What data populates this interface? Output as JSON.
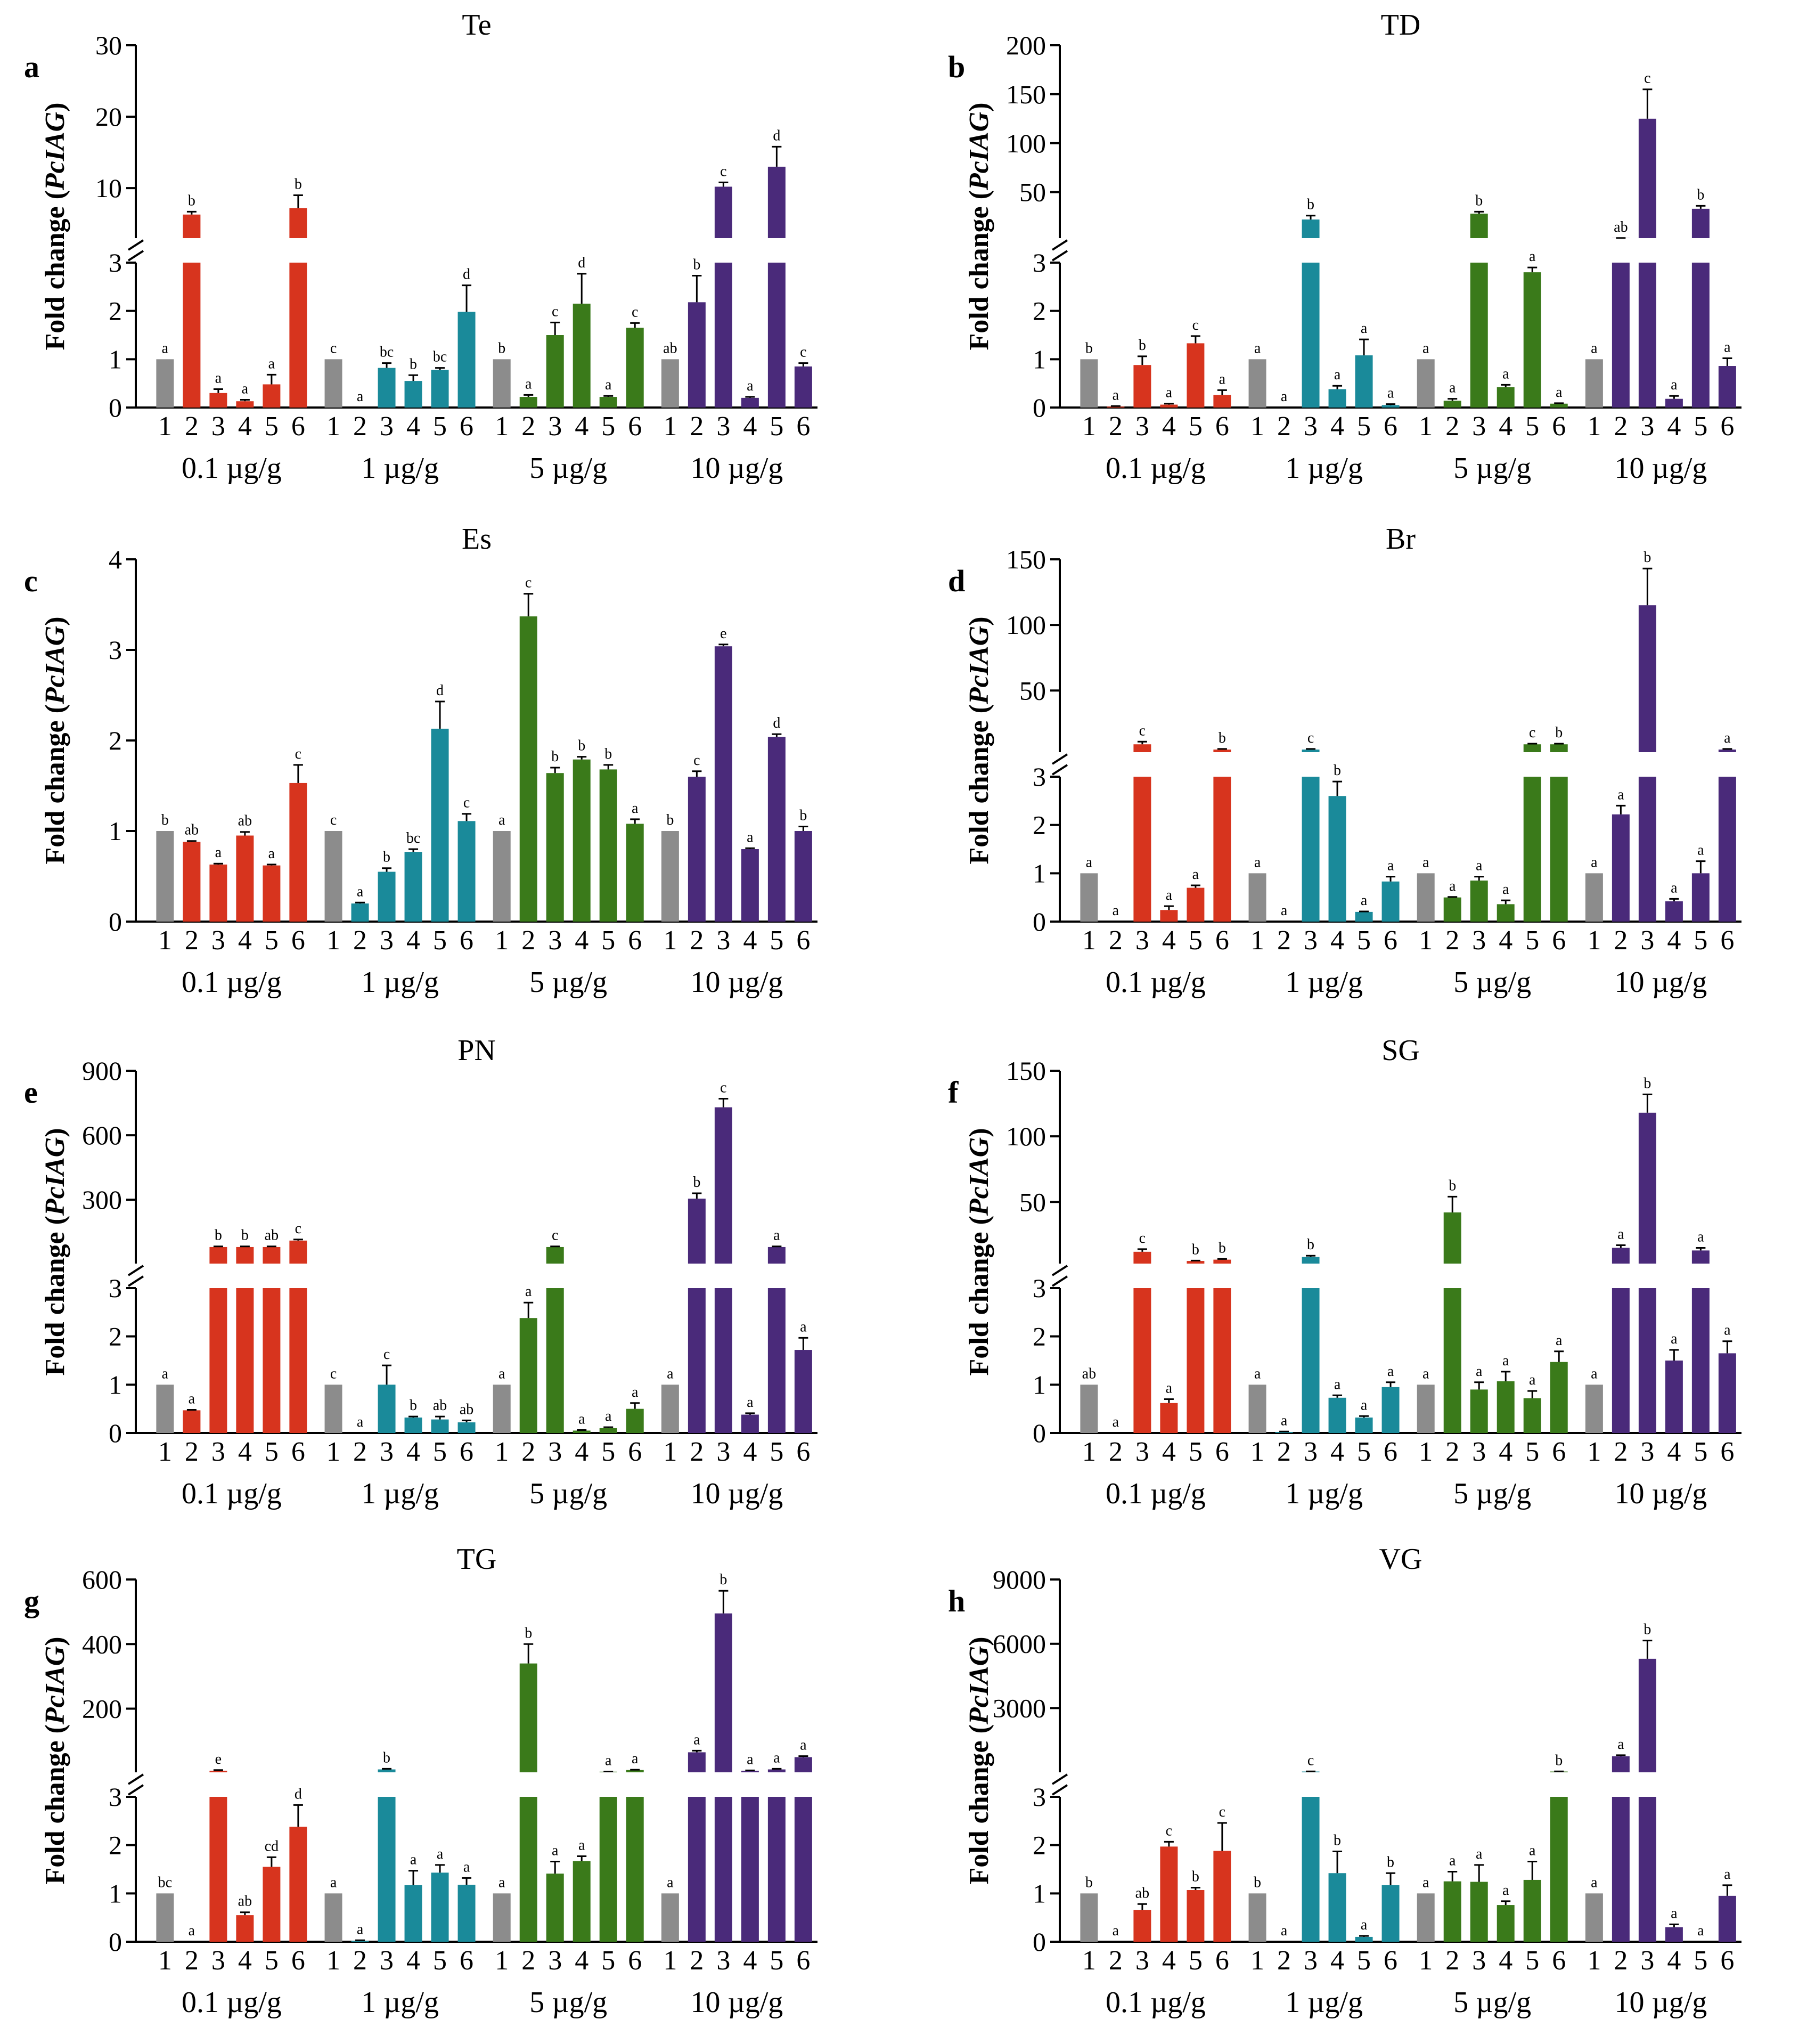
{
  "figure": {
    "y_label_prefix": "Fold change (",
    "y_label_gene": "PcIAG",
    "y_label_suffix": ")",
    "group_labels": [
      "0.1 µg/g",
      "1 µg/g",
      "5 µg/g",
      "10 µg/g"
    ],
    "bar_numbers": [
      "1",
      "2",
      "3",
      "4",
      "5",
      "6"
    ],
    "colors": {
      "control": "#8c8c8c",
      "group_0": "#d7341e",
      "group_1": "#1a8a9a",
      "group_2": "#3a7a1a",
      "group_3": "#4a2a7a"
    }
  },
  "chart_data": [
    {
      "type": "bar",
      "panel": "a",
      "title": "Te",
      "lower_ticks": [
        "0",
        "1",
        "2",
        "3"
      ],
      "upper_ticks": [
        "10",
        "20",
        "30"
      ],
      "lower_range": [
        0,
        3
      ],
      "upper_range": [
        3,
        30
      ],
      "groups": [
        {
          "values": [
            1.0,
            6.3,
            0.3,
            0.13,
            0.48,
            7.2
          ],
          "errors": [
            0,
            0.4,
            0.08,
            0.03,
            0.2,
            1.8
          ],
          "letters": [
            "a",
            "b",
            "a",
            "a",
            "a",
            "b"
          ]
        },
        {
          "values": [
            1.0,
            0.0,
            0.82,
            0.55,
            0.78,
            1.98
          ],
          "errors": [
            0,
            0,
            0.1,
            0.12,
            0.04,
            0.55
          ],
          "letters": [
            "c",
            "a",
            "bc",
            "b",
            "bc",
            "d"
          ]
        },
        {
          "values": [
            1.0,
            0.22,
            1.5,
            2.15,
            0.22,
            1.65
          ],
          "errors": [
            0,
            0.04,
            0.26,
            0.62,
            0.02,
            0.1
          ],
          "letters": [
            "b",
            "a",
            "c",
            "d",
            "a",
            "c"
          ]
        },
        {
          "values": [
            1.0,
            2.18,
            10.2,
            0.2,
            13.0,
            0.85
          ],
          "errors": [
            0,
            0.55,
            0.6,
            0.02,
            2.8,
            0.07
          ],
          "letters": [
            "ab",
            "b",
            "c",
            "a",
            "d",
            "c"
          ]
        }
      ]
    },
    {
      "type": "bar",
      "panel": "b",
      "title": "TD",
      "lower_ticks": [
        "0",
        "1",
        "2",
        "3"
      ],
      "upper_ticks": [
        "50",
        "100",
        "150",
        "200"
      ],
      "lower_range": [
        0,
        3
      ],
      "upper_range": [
        3,
        200
      ],
      "groups": [
        {
          "values": [
            1.0,
            0.02,
            0.88,
            0.06,
            1.33,
            0.26
          ],
          "errors": [
            0,
            0.01,
            0.18,
            0.02,
            0.15,
            0.1
          ],
          "letters": [
            "b",
            "a",
            "b",
            "a",
            "c",
            "a"
          ]
        },
        {
          "values": [
            1.0,
            0.0,
            22.0,
            0.38,
            1.08,
            0.05
          ],
          "errors": [
            0,
            0,
            4.0,
            0.07,
            0.33,
            0.02
          ],
          "letters": [
            "a",
            "a",
            "b",
            "a",
            "a",
            "a"
          ]
        },
        {
          "values": [
            1.0,
            0.14,
            28.0,
            0.42,
            2.8,
            0.08
          ],
          "errors": [
            0,
            0.04,
            2.0,
            0.05,
            0.1,
            0.01
          ],
          "letters": [
            "a",
            "a",
            "b",
            "a",
            "a",
            "a"
          ]
        },
        {
          "values": [
            1.0,
            3.1,
            125.0,
            0.18,
            33.0,
            0.86
          ],
          "errors": [
            0,
            0.01,
            30.0,
            0.06,
            3.0,
            0.16
          ],
          "letters": [
            "a",
            "ab",
            "c",
            "a",
            "b",
            "a"
          ]
        }
      ]
    },
    {
      "type": "bar",
      "panel": "c",
      "title": "Es",
      "lower_ticks": [
        "0",
        "1",
        "2",
        "3",
        "4"
      ],
      "upper_ticks": [],
      "lower_range": [
        0,
        4
      ],
      "upper_range": null,
      "groups": [
        {
          "values": [
            1.0,
            0.88,
            0.63,
            0.95,
            0.62,
            1.53
          ],
          "errors": [
            0,
            0.01,
            0.01,
            0.04,
            0.01,
            0.2
          ],
          "letters": [
            "b",
            "ab",
            "a",
            "ab",
            "a",
            "c"
          ]
        },
        {
          "values": [
            1.0,
            0.2,
            0.55,
            0.77,
            2.13,
            1.11
          ],
          "errors": [
            0,
            0.01,
            0.04,
            0.03,
            0.3,
            0.08
          ],
          "letters": [
            "c",
            "a",
            "b",
            "bc",
            "d",
            "c"
          ]
        },
        {
          "values": [
            1.0,
            3.37,
            1.64,
            1.79,
            1.68,
            1.08
          ],
          "errors": [
            0,
            0.25,
            0.06,
            0.03,
            0.05,
            0.05
          ],
          "letters": [
            "a",
            "c",
            "b",
            "b",
            "b",
            "a"
          ]
        },
        {
          "values": [
            1.0,
            1.6,
            3.04,
            0.8,
            2.04,
            1.0
          ],
          "errors": [
            0,
            0.06,
            0.02,
            0.01,
            0.03,
            0.05
          ],
          "letters": [
            "b",
            "c",
            "e",
            "a",
            "d",
            "b"
          ]
        }
      ]
    },
    {
      "type": "bar",
      "panel": "d",
      "title": "Br",
      "lower_ticks": [
        "0",
        "1",
        "2",
        "3"
      ],
      "upper_ticks": [
        "50",
        "100",
        "150"
      ],
      "lower_range": [
        0,
        3
      ],
      "upper_range": [
        3,
        150
      ],
      "groups": [
        {
          "values": [
            1.0,
            0.0,
            9.0,
            0.24,
            0.7,
            5.0
          ],
          "errors": [
            0,
            0,
            2.0,
            0.08,
            0.05,
            0.5
          ],
          "letters": [
            "a",
            "a",
            "c",
            "a",
            "a",
            "b"
          ]
        },
        {
          "values": [
            1.0,
            0.0,
            5.0,
            2.6,
            0.2,
            0.83
          ],
          "errors": [
            0,
            0,
            0.5,
            0.3,
            0.01,
            0.1
          ],
          "letters": [
            "a",
            "a",
            "c",
            "b",
            "a",
            "a"
          ]
        },
        {
          "values": [
            1.0,
            0.5,
            0.85,
            0.36,
            9.0,
            9.0
          ],
          "errors": [
            0,
            0.01,
            0.08,
            0.08,
            0.5,
            0.5
          ],
          "letters": [
            "a",
            "a",
            "a",
            "a",
            "c",
            "b"
          ]
        },
        {
          "values": [
            1.0,
            2.22,
            115.0,
            0.42,
            1.0,
            5.0
          ],
          "errors": [
            0,
            0.18,
            28.0,
            0.05,
            0.25,
            0.5
          ],
          "letters": [
            "a",
            "a",
            "b",
            "a",
            "a",
            "a"
          ]
        }
      ]
    },
    {
      "type": "bar",
      "panel": "e",
      "title": "PN",
      "lower_ticks": [
        "0",
        "1",
        "2",
        "3"
      ],
      "upper_ticks": [
        "300",
        "600",
        "900"
      ],
      "lower_range": [
        0,
        3
      ],
      "upper_range": [
        3,
        900
      ],
      "groups": [
        {
          "values": [
            1.0,
            0.47,
            80.0,
            80.0,
            80.0,
            110.0
          ],
          "errors": [
            0,
            0.01,
            3.0,
            3.0,
            3.0,
            5.0
          ],
          "letters": [
            "a",
            "a",
            "b",
            "b",
            "ab",
            "c"
          ]
        },
        {
          "values": [
            1.0,
            0.0,
            1.0,
            0.32,
            0.28,
            0.22
          ],
          "errors": [
            0,
            0,
            0.4,
            0.02,
            0.06,
            0.04
          ],
          "letters": [
            "c",
            "a",
            "c",
            "b",
            "ab",
            "ab"
          ]
        },
        {
          "values": [
            1.0,
            2.38,
            80.0,
            0.05,
            0.1,
            0.5
          ],
          "errors": [
            0,
            0.32,
            3.0,
            0.01,
            0.02,
            0.12
          ],
          "letters": [
            "a",
            "a",
            "c",
            "a",
            "a",
            "a"
          ]
        },
        {
          "values": [
            1.0,
            305.0,
            730.0,
            0.38,
            80.0,
            1.72
          ],
          "errors": [
            0,
            25.0,
            40.0,
            0.03,
            3.0,
            0.25
          ],
          "letters": [
            "a",
            "b",
            "c",
            "a",
            "a",
            "a"
          ]
        }
      ]
    },
    {
      "type": "bar",
      "panel": "f",
      "title": "SG",
      "lower_ticks": [
        "0",
        "1",
        "2",
        "3"
      ],
      "upper_ticks": [
        "50",
        "100",
        "150"
      ],
      "lower_range": [
        0,
        3
      ],
      "upper_range": [
        3,
        150
      ],
      "groups": [
        {
          "values": [
            1.0,
            0.0,
            12.0,
            0.62,
            5.0,
            6.0
          ],
          "errors": [
            0,
            0,
            2.0,
            0.08,
            0.3,
            0.5
          ],
          "letters": [
            "ab",
            "a",
            "c",
            "a",
            "b",
            "b"
          ]
        },
        {
          "values": [
            1.0,
            0.02,
            8.0,
            0.73,
            0.32,
            0.95
          ],
          "errors": [
            0,
            0.01,
            1.0,
            0.05,
            0.03,
            0.1
          ],
          "letters": [
            "a",
            "a",
            "b",
            "a",
            "a",
            "a"
          ]
        },
        {
          "values": [
            1.0,
            42.0,
            0.9,
            1.07,
            0.72,
            1.47
          ],
          "errors": [
            0,
            12.0,
            0.15,
            0.2,
            0.15,
            0.22
          ],
          "letters": [
            "a",
            "b",
            "a",
            "a",
            "a",
            "a"
          ]
        },
        {
          "values": [
            1.0,
            15.0,
            118.0,
            1.5,
            13.0,
            1.65
          ],
          "errors": [
            0,
            2.0,
            14.0,
            0.22,
            2.0,
            0.25
          ],
          "letters": [
            "a",
            "a",
            "b",
            "a",
            "a",
            "a"
          ]
        }
      ]
    },
    {
      "type": "bar",
      "panel": "g",
      "title": "TG",
      "lower_ticks": [
        "0",
        "1",
        "2",
        "3"
      ],
      "upper_ticks": [
        "200",
        "400",
        "600"
      ],
      "lower_range": [
        0,
        3
      ],
      "upper_range": [
        3,
        600
      ],
      "groups": [
        {
          "values": [
            1.0,
            0.0,
            8.0,
            0.55,
            1.55,
            2.38
          ],
          "errors": [
            0,
            0,
            2.0,
            0.06,
            0.2,
            0.45
          ],
          "letters": [
            "bc",
            "a",
            "e",
            "ab",
            "cd",
            "d"
          ]
        },
        {
          "values": [
            1.0,
            0.02,
            12.0,
            1.17,
            1.43,
            1.18
          ],
          "errors": [
            0,
            0.01,
            2.0,
            0.3,
            0.16,
            0.14
          ],
          "letters": [
            "a",
            "a",
            "b",
            "a",
            "a",
            "a"
          ]
        },
        {
          "values": [
            1.0,
            340.0,
            1.41,
            1.67,
            5.0,
            10.0
          ],
          "errors": [
            0,
            60.0,
            0.25,
            0.1,
            0.5,
            1.0
          ],
          "letters": [
            "a",
            "b",
            "a",
            "a",
            "a",
            "a"
          ]
        },
        {
          "values": [
            1.0,
            65.0,
            495.0,
            8.0,
            12.0,
            50.0
          ],
          "errors": [
            0,
            5.0,
            70.0,
            1.0,
            2.0,
            3.0
          ],
          "letters": [
            "a",
            "a",
            "b",
            "a",
            "a",
            "a"
          ]
        }
      ]
    },
    {
      "type": "bar",
      "panel": "h",
      "title": "VG",
      "lower_ticks": [
        "0",
        "1",
        "2",
        "3"
      ],
      "upper_ticks": [
        "3000",
        "6000",
        "9000"
      ],
      "lower_range": [
        0,
        3
      ],
      "upper_range": [
        3,
        9000
      ],
      "groups": [
        {
          "values": [
            1.0,
            0.0,
            0.66,
            1.97,
            1.07,
            1.88
          ],
          "errors": [
            0,
            0,
            0.12,
            0.1,
            0.05,
            0.58
          ],
          "letters": [
            "b",
            "a",
            "ab",
            "c",
            "b",
            "c"
          ]
        },
        {
          "values": [
            1.0,
            0.0,
            40.0,
            1.42,
            0.1,
            1.17
          ],
          "errors": [
            0,
            0,
            5.0,
            0.45,
            0.02,
            0.25
          ],
          "letters": [
            "b",
            "a",
            "c",
            "b",
            "a",
            "b"
          ]
        },
        {
          "values": [
            1.0,
            1.25,
            1.24,
            0.76,
            1.28,
            40.0
          ],
          "errors": [
            0,
            0.2,
            0.35,
            0.08,
            0.38,
            5.0
          ],
          "letters": [
            "a",
            "a",
            "a",
            "a",
            "a",
            "b"
          ]
        },
        {
          "values": [
            1.0,
            750.0,
            5300.0,
            0.3,
            0.0,
            0.95
          ],
          "errors": [
            0,
            50.0,
            850.0,
            0.06,
            0,
            0.22
          ],
          "letters": [
            "a",
            "a",
            "b",
            "a",
            "a",
            "a"
          ]
        }
      ]
    }
  ]
}
